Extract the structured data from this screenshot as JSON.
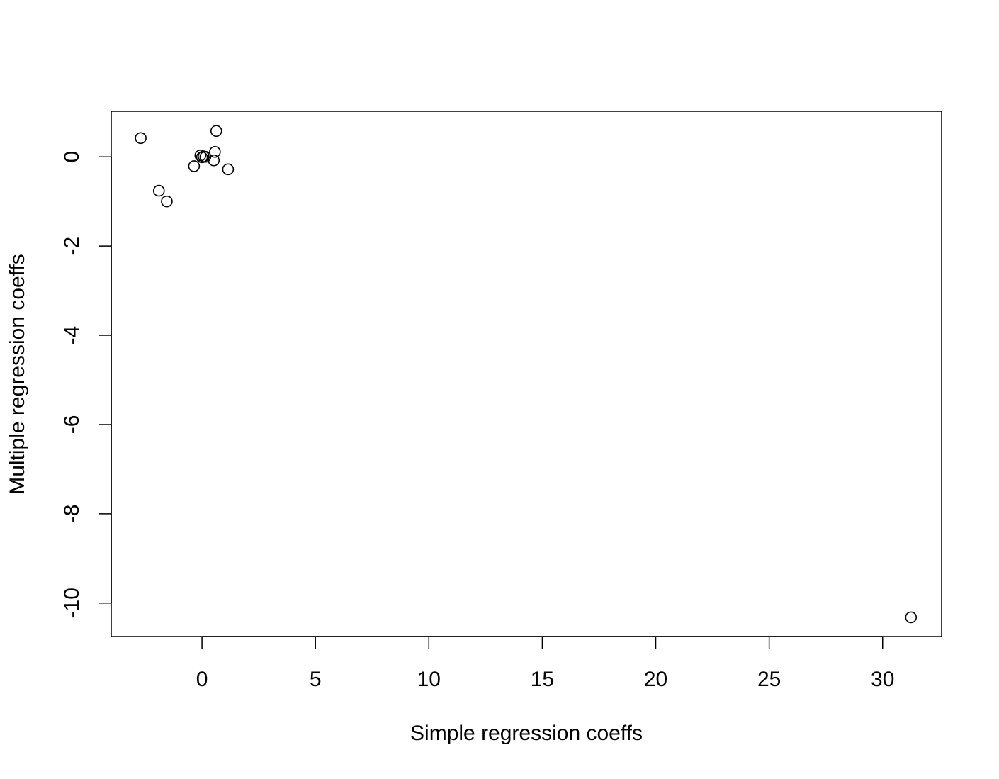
{
  "chart_data": {
    "type": "scatter",
    "title": "",
    "xlabel": "Simple regression coeffs",
    "ylabel": "Multiple regression coeffs",
    "xlim": [
      -4.0,
      32.6
    ],
    "ylim": [
      -10.75,
      1.02
    ],
    "x_ticks": [
      0,
      5,
      10,
      15,
      20,
      25,
      30
    ],
    "x_tick_labels": [
      "0",
      "5",
      "10",
      "15",
      "20",
      "25",
      "30"
    ],
    "y_ticks": [
      0,
      -2,
      -4,
      -6,
      -8,
      -10
    ],
    "y_tick_labels": [
      "0",
      "-2",
      "-4",
      "-6",
      "-8",
      "-10"
    ],
    "grid": false,
    "legend": "none",
    "marker": "open-circle",
    "colors": {
      "marker": "#000000",
      "axes": "#000000",
      "background": "#ffffff"
    },
    "points": [
      {
        "x": -2.7,
        "y": 0.42
      },
      {
        "x": -1.9,
        "y": -0.76
      },
      {
        "x": -1.55,
        "y": -1.0
      },
      {
        "x": -0.35,
        "y": -0.21
      },
      {
        "x": -0.07,
        "y": 0.03
      },
      {
        "x": 0.0,
        "y": -0.01
      },
      {
        "x": 0.07,
        "y": 0.01
      },
      {
        "x": 0.15,
        "y": 0.0
      },
      {
        "x": 0.52,
        "y": -0.08
      },
      {
        "x": 0.57,
        "y": 0.11
      },
      {
        "x": 0.63,
        "y": 0.58
      },
      {
        "x": 1.15,
        "y": -0.28
      },
      {
        "x": 31.25,
        "y": -10.32
      }
    ]
  }
}
